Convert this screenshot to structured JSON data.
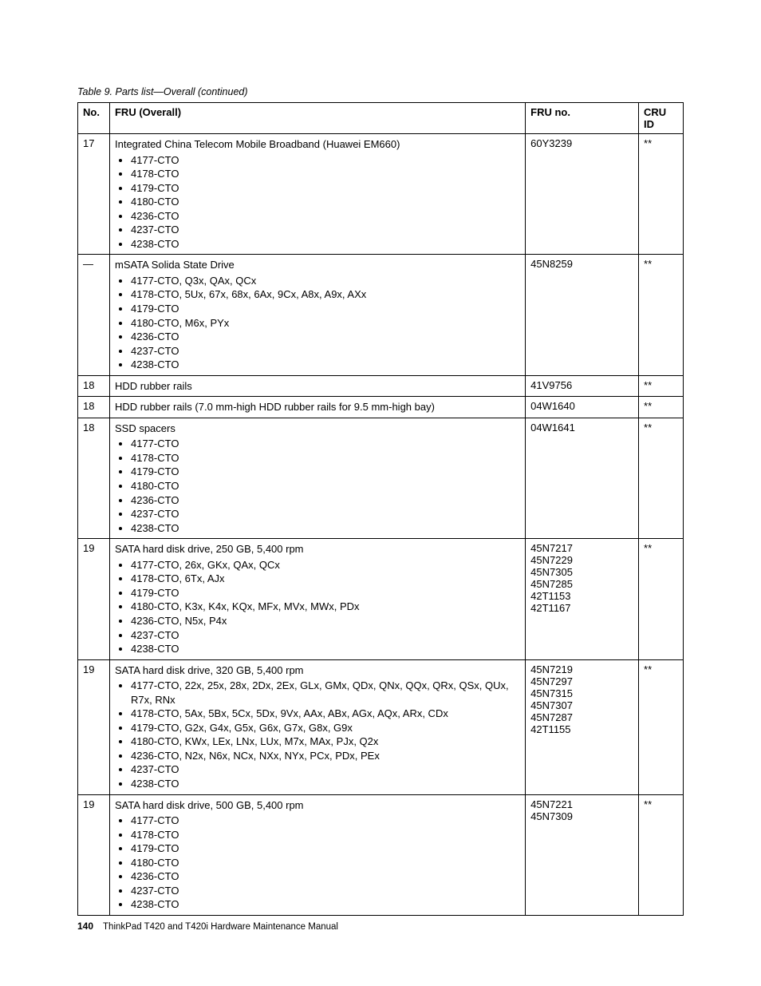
{
  "caption": "Table 9. Parts list—Overall (continued)",
  "headers": {
    "no": "No.",
    "fru_overall": "FRU (Overall)",
    "fru_no": "FRU no.",
    "cru_id": "CRU ID"
  },
  "rows": [
    {
      "no": "17",
      "lead": "Integrated China Telecom Mobile Broadband (Huawei EM660)",
      "items": [
        "4177-CTO",
        "4178-CTO",
        "4179-CTO",
        "4180-CTO",
        "4236-CTO",
        "4237-CTO",
        "4238-CTO"
      ],
      "fru_no": [
        "60Y3239"
      ],
      "cru_id": "**"
    },
    {
      "no": "—",
      "lead": "mSATA Solida State Drive",
      "items": [
        "4177-CTO, Q3x, QAx, QCx",
        "4178-CTO, 5Ux, 67x, 68x, 6Ax, 9Cx, A8x, A9x, AXx",
        "4179-CTO",
        "4180-CTO, M6x, PYx",
        "4236-CTO",
        "4237-CTO",
        "4238-CTO"
      ],
      "fru_no": [
        "45N8259"
      ],
      "cru_id": "**"
    },
    {
      "no": "18",
      "lead": "HDD rubber rails",
      "items": [],
      "fru_no": [
        "41V9756"
      ],
      "cru_id": "**"
    },
    {
      "no": "18",
      "lead": "HDD rubber rails (7.0 mm-high HDD rubber rails for 9.5 mm-high bay)",
      "items": [],
      "fru_no": [
        "04W1640"
      ],
      "cru_id": "**"
    },
    {
      "no": "18",
      "lead": "SSD spacers",
      "items": [
        "4177-CTO",
        "4178-CTO",
        "4179-CTO",
        "4180-CTO",
        "4236-CTO",
        "4237-CTO",
        "4238-CTO"
      ],
      "fru_no": [
        "04W1641"
      ],
      "cru_id": "**"
    },
    {
      "no": "19",
      "lead": "SATA hard disk drive, 250 GB, 5,400 rpm",
      "items": [
        "4177-CTO, 26x, GKx, QAx, QCx",
        "4178-CTO, 6Tx, AJx",
        "4179-CTO",
        "4180-CTO, K3x, K4x, KQx, MFx, MVx, MWx, PDx",
        "4236-CTO, N5x, P4x",
        "4237-CTO",
        "4238-CTO"
      ],
      "fru_no": [
        "45N7217",
        "45N7229",
        "45N7305",
        "45N7285",
        "42T1153",
        "42T1167"
      ],
      "cru_id": "**"
    },
    {
      "no": "19",
      "lead": "SATA hard disk drive, 320 GB, 5,400 rpm",
      "items": [
        "4177-CTO, 22x, 25x, 28x, 2Dx, 2Ex, GLx, GMx, QDx, QNx, QQx, QRx, QSx, QUx, R7x, RNx",
        "4178-CTO, 5Ax, 5Bx, 5Cx, 5Dx, 9Vx, AAx, ABx, AGx, AQx, ARx, CDx",
        "4179-CTO, G2x, G4x, G5x, G6x, G7x, G8x, G9x",
        "4180-CTO, KWx, LEx, LNx, LUx, M7x, MAx, PJx, Q2x",
        "4236-CTO, N2x, N6x, NCx, NXx, NYx, PCx, PDx, PEx",
        "4237-CTO",
        "4238-CTO"
      ],
      "fru_no": [
        "45N7219",
        "45N7297",
        "45N7315",
        "45N7307",
        "45N7287",
        "42T1155"
      ],
      "cru_id": "**"
    },
    {
      "no": "19",
      "lead": "SATA hard disk drive, 500 GB, 5,400 rpm",
      "items": [
        "4177-CTO",
        "4178-CTO",
        "4179-CTO",
        "4180-CTO",
        "4236-CTO",
        "4237-CTO",
        "4238-CTO"
      ],
      "fru_no": [
        "45N7221",
        "45N7309"
      ],
      "cru_id": "**"
    }
  ],
  "footer": {
    "page": "140",
    "doc": "ThinkPad T420 and T420i Hardware Maintenance Manual"
  }
}
